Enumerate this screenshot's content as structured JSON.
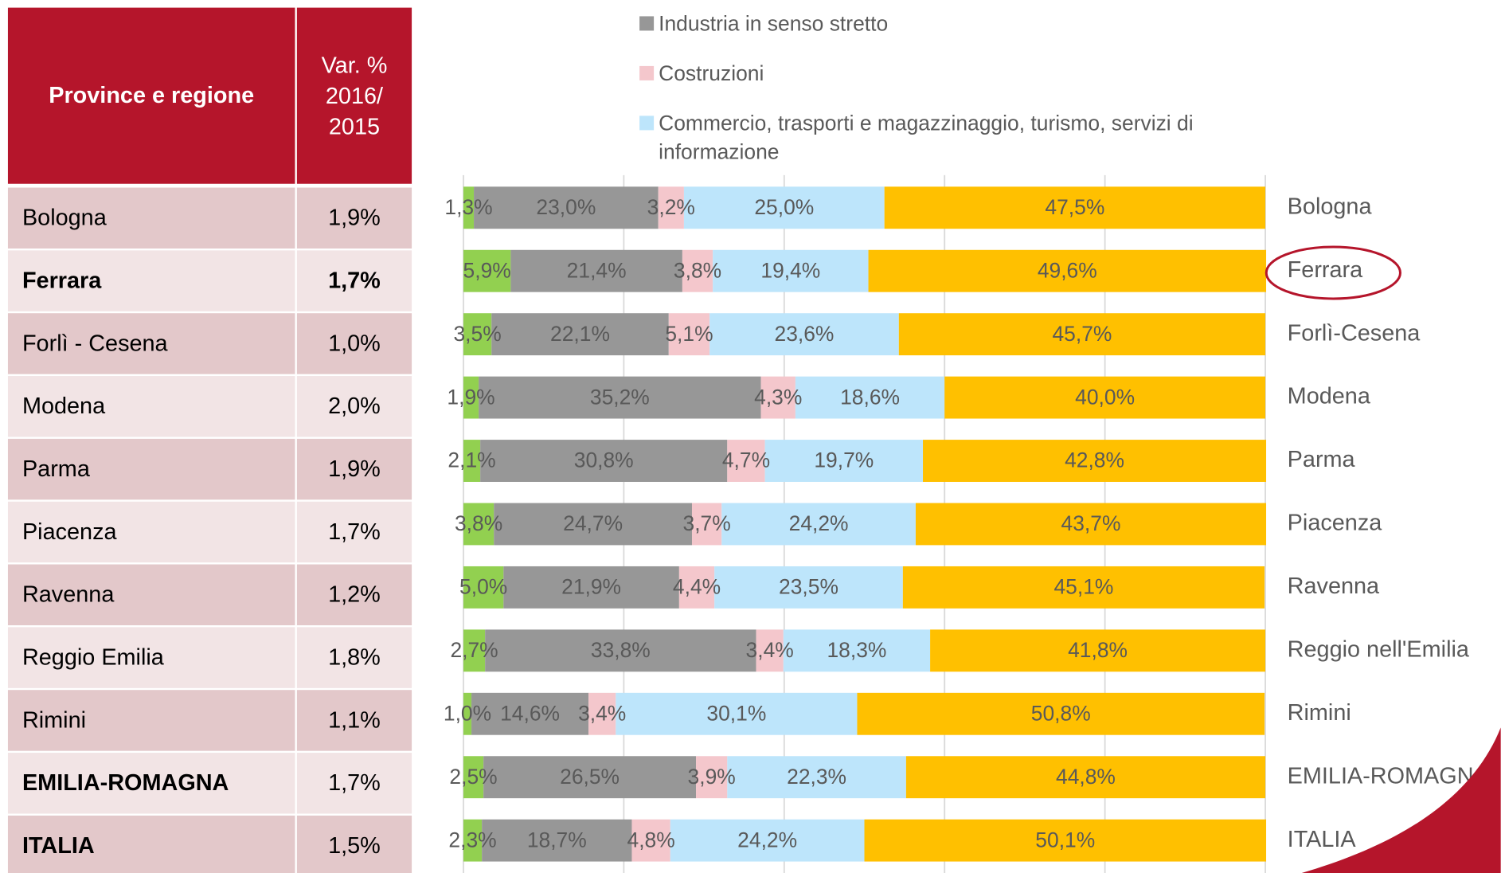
{
  "table": {
    "header": [
      "Province e regione",
      [
        "Var. %",
        "2016/",
        "2015"
      ]
    ],
    "rows": [
      [
        "Bologna",
        "1,9%"
      ],
      [
        "Ferrara",
        "1,7%"
      ],
      [
        "Forlì - Cesena",
        "1,0%"
      ],
      [
        "Modena",
        "2,0%"
      ],
      [
        "Parma",
        "1,9%"
      ],
      [
        "Piacenza",
        "1,7%"
      ],
      [
        "Ravenna",
        "1,2%"
      ],
      [
        "Reggio Emilia",
        "1,8%"
      ],
      [
        "Rimini",
        "1,1%"
      ],
      [
        "EMILIA-ROMAGNA",
        "1,7%"
      ],
      [
        "ITALIA",
        "1,5%"
      ]
    ]
  },
  "chart_data": {
    "type": "bar",
    "orientation": "horizontal",
    "stacked": true,
    "categories": [
      "Bologna",
      "Ferrara",
      "Forlì-Cesena",
      "Modena",
      "Parma",
      "Piacenza",
      "Ravenna",
      "Reggio nell'Emilia",
      "Rimini",
      "EMILIA-ROMAGNA",
      "ITALIA"
    ],
    "series": [
      {
        "color": "#92d050",
        "values": [
          1.3,
          5.9,
          3.5,
          1.9,
          2.1,
          3.8,
          5.0,
          2.7,
          1.0,
          2.5,
          2.3
        ],
        "value_labels": [
          "1,3%",
          "5,9%",
          "3,5%",
          "1,9%",
          "2,1%",
          "3,8%",
          "5,0%",
          "2,7%",
          "1,0%",
          "2,5%",
          "2,3%"
        ]
      },
      {
        "name": "Industria in senso stretto",
        "color": "#979797",
        "values": [
          23.0,
          21.4,
          22.1,
          35.2,
          30.8,
          24.7,
          21.9,
          33.8,
          14.6,
          26.5,
          18.7
        ],
        "value_labels": [
          "23,0%",
          "21,4%",
          "22,1%",
          "35,2%",
          "30,8%",
          "24,7%",
          "21,9%",
          "33,8%",
          "14,6%",
          "26,5%",
          "18,7%"
        ]
      },
      {
        "name": "Costruzioni",
        "color": "#f4c7cc",
        "values": [
          3.2,
          3.8,
          5.1,
          4.3,
          4.7,
          3.7,
          4.4,
          3.4,
          3.4,
          3.9,
          4.8
        ],
        "value_labels": [
          "3,2%",
          "3,8%",
          "5,1%",
          "4,3%",
          "4,7%",
          "3,7%",
          "4,4%",
          "3,4%",
          "3,4%",
          "3,9%",
          "4,8%"
        ]
      },
      {
        "name": "Commercio, trasporti e magazzinaggio, turismo, servizi di informazione",
        "color": "#bde5fb",
        "values": [
          25.0,
          19.4,
          23.6,
          18.6,
          19.7,
          24.2,
          23.5,
          18.3,
          30.1,
          22.3,
          24.2
        ],
        "value_labels": [
          "25,0%",
          "19,4%",
          "23,6%",
          "18,6%",
          "19,7%",
          "24,2%",
          "23,5%",
          "18,3%",
          "30,1%",
          "22,3%",
          "24,2%"
        ]
      },
      {
        "color": "#ffc000",
        "values": [
          47.5,
          49.6,
          45.7,
          40.0,
          42.8,
          43.7,
          45.1,
          41.8,
          50.8,
          44.8,
          50.1
        ],
        "value_labels": [
          "47,5%",
          "49,6%",
          "45,7%",
          "40,0%",
          "42,8%",
          "43,7%",
          "45,1%",
          "41,8%",
          "50,8%",
          "44,8%",
          "50,1%"
        ]
      }
    ],
    "xlim": [
      0,
      100
    ],
    "xticks": [
      0,
      20,
      40,
      60,
      80,
      100
    ],
    "grid": true
  }
}
